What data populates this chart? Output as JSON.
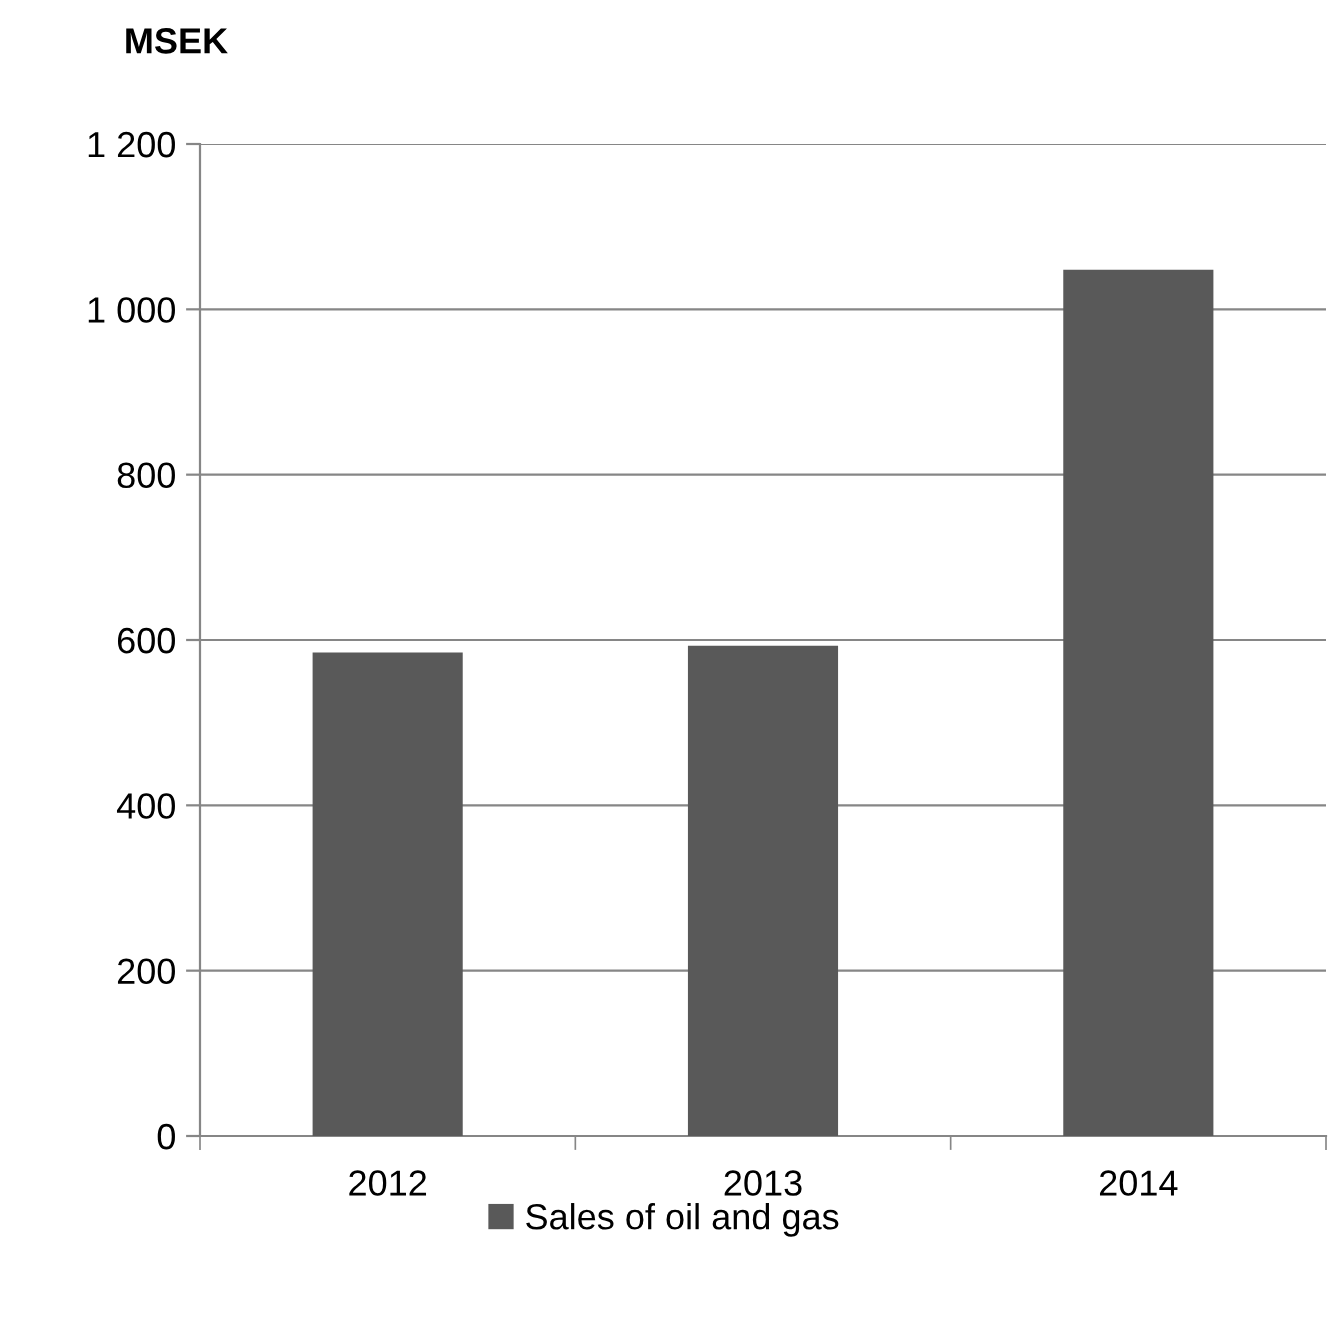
{
  "chart_data": {
    "type": "bar",
    "ylabel": "MSEK",
    "categories": [
      "2012",
      "2013",
      "2014"
    ],
    "series": [
      {
        "name": "Sales of oil and gas",
        "color": "#595959",
        "values": [
          585,
          593,
          1048
        ]
      }
    ],
    "ylim": [
      0,
      1200
    ],
    "yticks": [
      0,
      200,
      400,
      600,
      800,
      {
        "value": 1000,
        "label": "1 000"
      },
      {
        "value": 1200,
        "label": "1 200"
      }
    ],
    "grid": "y",
    "legend": "bottom"
  }
}
